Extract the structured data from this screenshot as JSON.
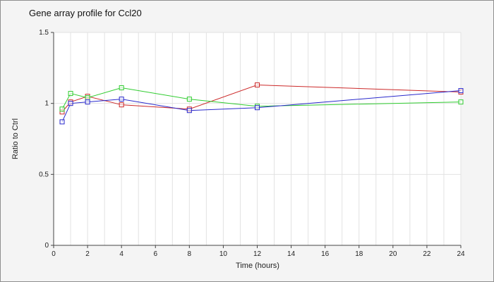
{
  "chart_data": {
    "type": "line",
    "title": "Gene array profile for Ccl20",
    "xlabel": "Time (hours)",
    "ylabel": "Ratio to Ctrl",
    "x": [
      0.5,
      1,
      2,
      4,
      8,
      12,
      24
    ],
    "series": [
      {
        "name": "series-red",
        "color": "#cc2929",
        "values": [
          0.94,
          1.01,
          1.05,
          0.99,
          0.96,
          1.13,
          1.08
        ]
      },
      {
        "name": "series-green",
        "color": "#2fcc2f",
        "values": [
          0.96,
          1.07,
          1.04,
          1.11,
          1.03,
          0.98,
          1.01
        ]
      },
      {
        "name": "series-blue",
        "color": "#2929cc",
        "values": [
          0.87,
          1.0,
          1.01,
          1.03,
          0.95,
          0.97,
          1.09
        ]
      }
    ],
    "xlim": [
      0,
      24
    ],
    "ylim": [
      0,
      1.5
    ],
    "x_ticks": [
      0,
      2,
      4,
      6,
      8,
      10,
      12,
      14,
      16,
      18,
      20,
      22,
      24
    ],
    "y_ticks": [
      0,
      0.5,
      1,
      1.5
    ],
    "x_grid_step": 1,
    "grid": true,
    "legend": "none",
    "marker": "open-square",
    "colors": {
      "plot_background": "#ffffff",
      "outer_background": "#f4f4f4",
      "grid": "#e2e2e2",
      "axis": "#444444"
    }
  }
}
